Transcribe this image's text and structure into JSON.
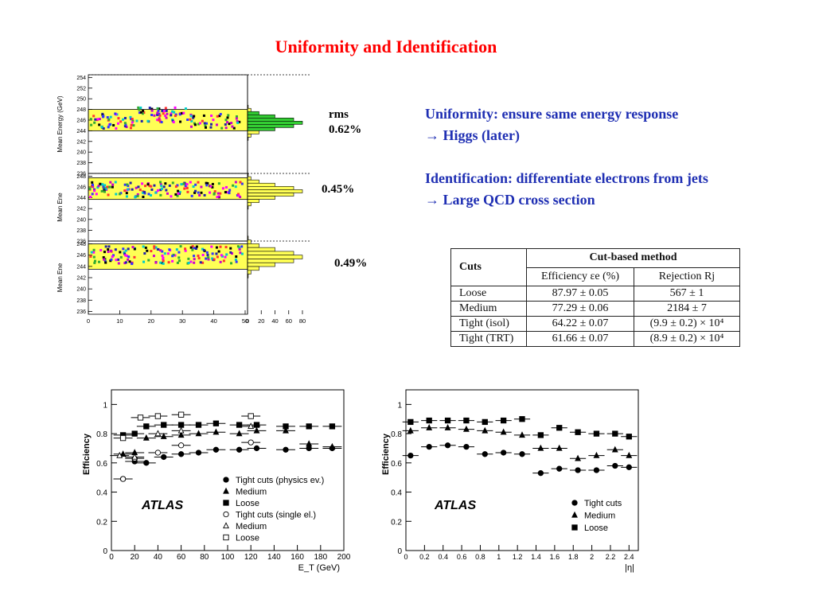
{
  "title": "Uniformity and Identification",
  "bullets": {
    "line1": "Uniformity: ensure same energy response",
    "line2": "→ Higgs (later)",
    "line3": "Identification: differentiate electrons from jets",
    "line4": "→ Large QCD cross section"
  },
  "rms": {
    "label": "rms",
    "values": [
      "0.62%",
      "0.45%",
      "0.49%"
    ]
  },
  "table": {
    "col_cuts": "Cuts",
    "col_group": "Cut-based method",
    "col_eff": "Efficiency εe (%)",
    "col_rej": "Rejection Rj",
    "rows": [
      {
        "cut": "Loose",
        "eff": "87.97 ± 0.05",
        "rej": "567 ± 1"
      },
      {
        "cut": "Medium",
        "eff": "77.29 ± 0.06",
        "rej": "2184 ± 7"
      },
      {
        "cut": "Tight (isol)",
        "eff": "64.22 ± 0.07",
        "rej": "(9.9 ± 0.2) × 10⁴"
      },
      {
        "cut": "Tight (TRT)",
        "eff": "61.66 ± 0.07",
        "rej": "(8.9 ± 0.2) × 10⁴"
      }
    ]
  },
  "colors": {
    "title": "#ff0000",
    "bullets": "#1f2fb3",
    "band": "#ffff55",
    "hist_green": "#33cc33"
  },
  "chart_data": [
    {
      "type": "scatter",
      "title": "",
      "xlabel": "",
      "ylabel": "Mean Energy (GeV)",
      "panel_ylabels": [
        "Mean Energy (GeV)",
        "Mean Ene",
        "Mean Ene"
      ],
      "xlim": [
        0,
        50
      ],
      "x_ticks": [
        0,
        10,
        20,
        30,
        40,
        50
      ],
      "panels": [
        {
          "ylim": [
            236,
            254.5
          ],
          "yticks": [
            236,
            238,
            240,
            242,
            244,
            246,
            248,
            250,
            252,
            254
          ],
          "band": [
            244,
            248
          ],
          "mean": 245.8,
          "rms": "0.62%"
        },
        {
          "ylim": [
            236,
            248.5
          ],
          "yticks": [
            236,
            238,
            240,
            242,
            244,
            246,
            248
          ],
          "band": [
            243.7,
            247.7
          ],
          "mean": 245.5,
          "rms": "0.45%"
        },
        {
          "ylim": [
            235.5,
            248.5
          ],
          "yticks": [
            236,
            238,
            240,
            242,
            244,
            246,
            248
          ],
          "band": [
            243.5,
            248
          ],
          "mean": 246.0,
          "rms": "0.49%"
        }
      ],
      "hist_xticks": [
        0,
        20,
        40,
        60,
        80
      ],
      "hist_xlim": [
        0,
        80
      ]
    },
    {
      "type": "scatter",
      "title": "",
      "xlabel": "E_T (GeV)",
      "ylabel": "Efficiency",
      "xlim": [
        0,
        200
      ],
      "ylim": [
        0,
        1.1
      ],
      "x_ticks": [
        0,
        20,
        40,
        60,
        80,
        100,
        120,
        140,
        160,
        180,
        200
      ],
      "y_ticks": [
        0,
        0.2,
        0.4,
        0.6,
        0.8,
        1
      ],
      "annotation": "ATLAS",
      "legend_position": "bottom-right",
      "series": [
        {
          "name": "Tight cuts (physics ev.)",
          "marker": "circle-filled",
          "x": [
            10,
            20,
            30,
            45,
            60,
            75,
            90,
            110,
            125,
            150,
            170,
            190
          ],
          "y": [
            0.49,
            0.61,
            0.6,
            0.64,
            0.66,
            0.67,
            0.69,
            0.69,
            0.7,
            0.69,
            0.7,
            0.7
          ]
        },
        {
          "name": "Medium",
          "marker": "triangle-filled",
          "x": [
            10,
            20,
            30,
            45,
            60,
            75,
            90,
            110,
            125,
            150,
            170,
            190
          ],
          "y": [
            0.66,
            0.67,
            0.77,
            0.78,
            0.79,
            0.8,
            0.81,
            0.8,
            0.82,
            0.82,
            0.73,
            0.71
          ]
        },
        {
          "name": "Loose",
          "marker": "square-filled",
          "x": [
            10,
            20,
            30,
            45,
            60,
            75,
            90,
            110,
            125,
            150,
            170,
            190
          ],
          "y": [
            0.79,
            0.8,
            0.85,
            0.86,
            0.86,
            0.86,
            0.87,
            0.86,
            0.86,
            0.85,
            0.85,
            0.85
          ]
        },
        {
          "name": "Tight cuts (single el.)",
          "marker": "circle-open",
          "x": [
            10,
            20,
            40,
            60,
            120
          ],
          "y": [
            0.49,
            0.63,
            0.67,
            0.72,
            0.74
          ]
        },
        {
          "name": "Medium",
          "marker": "triangle-open",
          "x": [
            7,
            20,
            40,
            60,
            120
          ],
          "y": [
            0.65,
            0.64,
            0.8,
            0.82,
            0.85
          ]
        },
        {
          "name": "Loose",
          "marker": "square-open",
          "x": [
            10,
            25,
            40,
            60,
            120
          ],
          "y": [
            0.77,
            0.91,
            0.92,
            0.93,
            0.92
          ]
        }
      ]
    },
    {
      "type": "scatter",
      "title": "",
      "xlabel": "|η|",
      "ylabel": "Efficiency",
      "xlim": [
        0,
        2.5
      ],
      "ylim": [
        0,
        1.1
      ],
      "x_ticks": [
        "0",
        "0.2",
        "0.4",
        "0.6",
        "0.8",
        "1",
        "1.2",
        "1.4",
        "1.6",
        "1.8",
        "2",
        "2.2",
        "2.4"
      ],
      "y_ticks": [
        0,
        0.2,
        0.4,
        0.6,
        0.8,
        1
      ],
      "annotation": "ATLAS",
      "legend_position": "bottom-right",
      "series": [
        {
          "name": "Tight cuts",
          "marker": "circle-filled",
          "x": [
            0.05,
            0.25,
            0.45,
            0.65,
            0.85,
            1.05,
            1.25,
            1.45,
            1.65,
            1.85,
            2.05,
            2.25,
            2.4
          ],
          "y": [
            0.65,
            0.71,
            0.72,
            0.71,
            0.66,
            0.67,
            0.66,
            0.53,
            0.56,
            0.55,
            0.55,
            0.58,
            0.57
          ]
        },
        {
          "name": "Medium",
          "marker": "triangle-filled",
          "x": [
            0.05,
            0.25,
            0.45,
            0.65,
            0.85,
            1.05,
            1.25,
            1.45,
            1.65,
            1.85,
            2.05,
            2.25,
            2.4
          ],
          "y": [
            0.82,
            0.84,
            0.84,
            0.83,
            0.82,
            0.81,
            0.79,
            0.7,
            0.7,
            0.63,
            0.65,
            0.69,
            0.65
          ]
        },
        {
          "name": "Loose",
          "marker": "square-filled",
          "x": [
            0.05,
            0.25,
            0.45,
            0.65,
            0.85,
            1.05,
            1.25,
            1.45,
            1.65,
            1.85,
            2.05,
            2.25,
            2.4
          ],
          "y": [
            0.88,
            0.89,
            0.89,
            0.89,
            0.88,
            0.89,
            0.9,
            0.79,
            0.84,
            0.81,
            0.8,
            0.8,
            0.78
          ]
        }
      ]
    }
  ]
}
